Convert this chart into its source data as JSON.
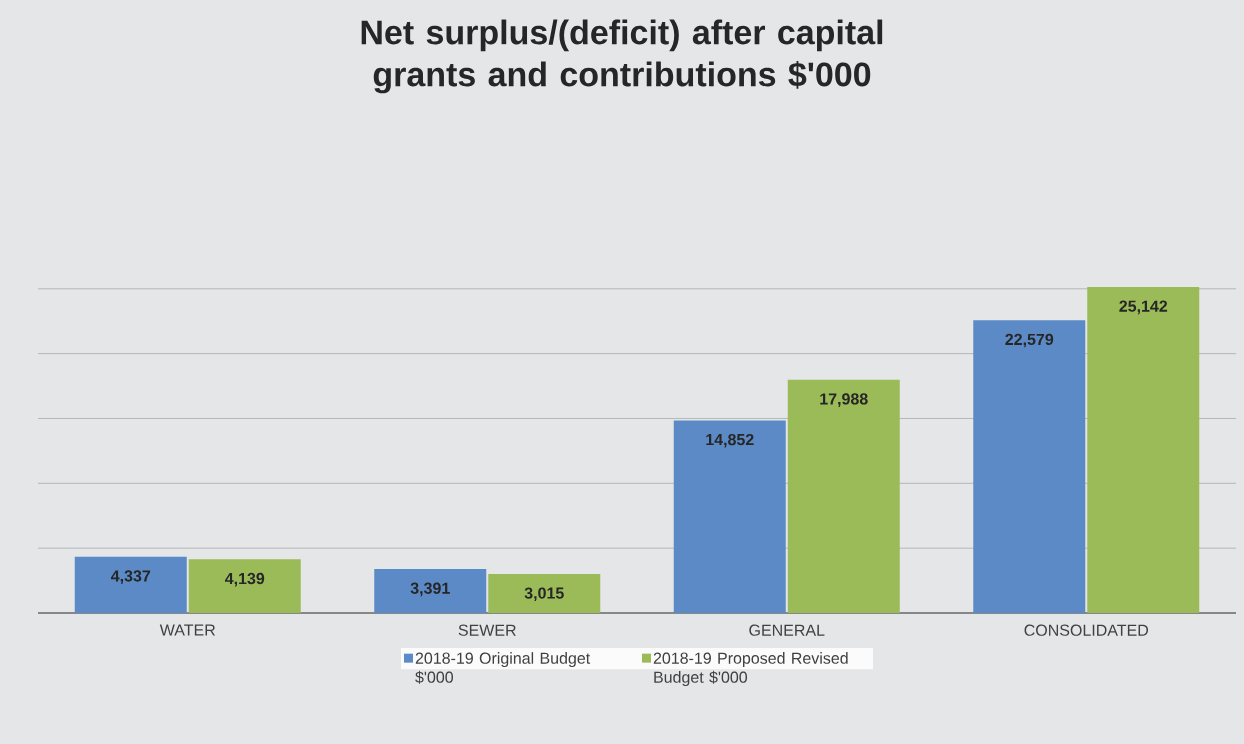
{
  "chart_data": {
    "type": "bar",
    "title": "Net surplus/(deficit) after capital grants and contributions $'000",
    "categories": [
      "WATER",
      "SEWER",
      "GENERAL",
      "CONSOLIDATED"
    ],
    "series": [
      {
        "name": "2018-19 Original Budget $'000",
        "color": "#5b8ac6",
        "values": [
          4337,
          3391,
          14852,
          22579
        ],
        "value_labels": [
          "4,337",
          "3,391",
          "14,852",
          "22,579"
        ]
      },
      {
        "name": "2018-19 Proposed Revised Budget $'000",
        "color": "#9bbb59",
        "values": [
          4139,
          3015,
          17988,
          25142
        ],
        "value_labels": [
          "4,139",
          "3,015",
          "17,988",
          "25,142"
        ]
      }
    ],
    "tick_labels": "x",
    "grid": "y",
    "legend": "bottom"
  }
}
